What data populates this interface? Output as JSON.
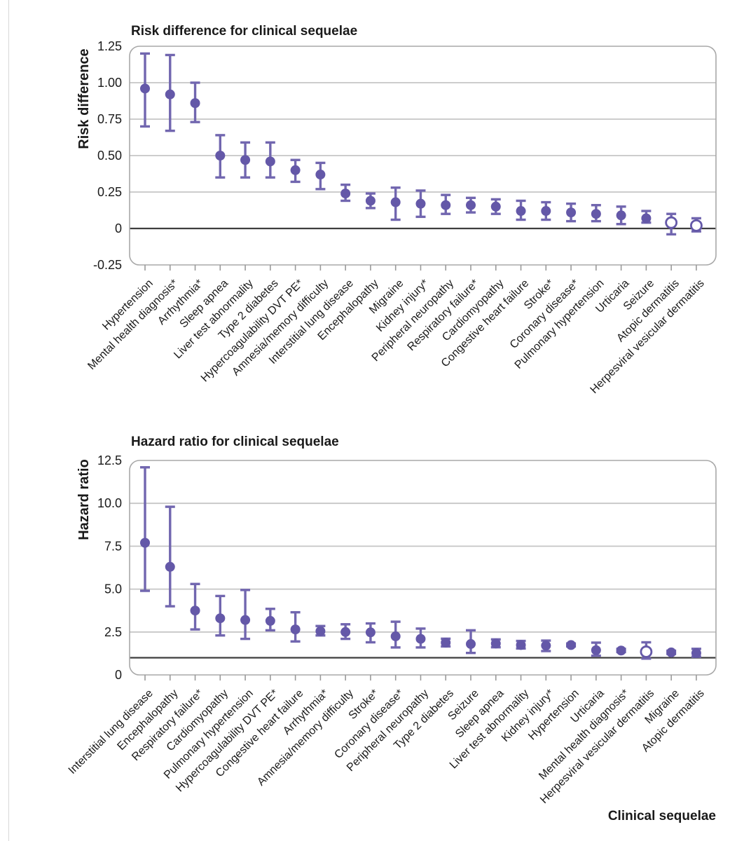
{
  "figure": {
    "x_axis_title": "Clinical sequelae"
  },
  "colors": {
    "marker": "#6458a8",
    "errorbar": "#7166af",
    "open_marker_fill": "#ffffff",
    "grid": "#c6c6c6",
    "reference_line": "#3e3e3e",
    "frame": "#a8a8a8",
    "tick": "#9a9a9a",
    "text": "#1a1a1a"
  },
  "chart_data": [
    {
      "type": "scatter",
      "subtype": "point-estimates-with-95ci-error-bars",
      "title": "Risk difference for clinical sequelae",
      "ylabel": "Risk difference",
      "ylim": [
        -0.25,
        1.25
      ],
      "grid": true,
      "legend_position": "none",
      "reference_line": 0,
      "yticks": [
        {
          "v": 1.25,
          "label": "1.25"
        },
        {
          "v": 1.0,
          "label": "1.00"
        },
        {
          "v": 0.75,
          "label": "0.75"
        },
        {
          "v": 0.5,
          "label": "0.50"
        },
        {
          "v": 0.25,
          "label": "0.25"
        },
        {
          "v": 0,
          "label": "0"
        },
        {
          "v": -0.25,
          "label": "-0.25"
        }
      ],
      "points": [
        {
          "category": "Hypertension",
          "value": 0.96,
          "lo": 0.7,
          "hi": 1.2,
          "open": false
        },
        {
          "category": "Mental health diagnosis*",
          "value": 0.92,
          "lo": 0.67,
          "hi": 1.19,
          "open": false
        },
        {
          "category": "Arrhythmia*",
          "value": 0.86,
          "lo": 0.73,
          "hi": 1.0,
          "open": false
        },
        {
          "category": "Sleep apnea",
          "value": 0.5,
          "lo": 0.35,
          "hi": 0.64,
          "open": false
        },
        {
          "category": "Liver test abnormality",
          "value": 0.47,
          "lo": 0.35,
          "hi": 0.59,
          "open": false
        },
        {
          "category": "Type 2 diabetes",
          "value": 0.46,
          "lo": 0.35,
          "hi": 0.59,
          "open": false
        },
        {
          "category": "Hypercoagulability DVT PE*",
          "value": 0.4,
          "lo": 0.32,
          "hi": 0.47,
          "open": false
        },
        {
          "category": "Amnesia/memory difficulty",
          "value": 0.37,
          "lo": 0.27,
          "hi": 0.45,
          "open": false
        },
        {
          "category": "Interstitial lung disease",
          "value": 0.24,
          "lo": 0.19,
          "hi": 0.3,
          "open": false
        },
        {
          "category": "Encephalopathy",
          "value": 0.19,
          "lo": 0.14,
          "hi": 0.24,
          "open": false
        },
        {
          "category": "Migraine",
          "value": 0.18,
          "lo": 0.06,
          "hi": 0.28,
          "open": false
        },
        {
          "category": "Kidney injury*",
          "value": 0.17,
          "lo": 0.08,
          "hi": 0.26,
          "open": false
        },
        {
          "category": "Peripheral neuropathy",
          "value": 0.16,
          "lo": 0.1,
          "hi": 0.23,
          "open": false
        },
        {
          "category": "Respiratory failure*",
          "value": 0.16,
          "lo": 0.11,
          "hi": 0.21,
          "open": false
        },
        {
          "category": "Cardiomyopathy",
          "value": 0.15,
          "lo": 0.1,
          "hi": 0.2,
          "open": false
        },
        {
          "category": "Congestive heart failure",
          "value": 0.12,
          "lo": 0.06,
          "hi": 0.19,
          "open": false
        },
        {
          "category": "Stroke*",
          "value": 0.12,
          "lo": 0.06,
          "hi": 0.18,
          "open": false
        },
        {
          "category": "Coronary disease*",
          "value": 0.11,
          "lo": 0.05,
          "hi": 0.17,
          "open": false
        },
        {
          "category": "Pulmonary hypertension",
          "value": 0.1,
          "lo": 0.05,
          "hi": 0.16,
          "open": false
        },
        {
          "category": "Urticaria",
          "value": 0.09,
          "lo": 0.03,
          "hi": 0.15,
          "open": false
        },
        {
          "category": "Seizure",
          "value": 0.07,
          "lo": 0.04,
          "hi": 0.12,
          "open": false
        },
        {
          "category": "Atopic dermatitis",
          "value": 0.04,
          "lo": -0.04,
          "hi": 0.1,
          "open": true
        },
        {
          "category": "Herpesviral vesicular dermatitis",
          "value": 0.02,
          "lo": -0.02,
          "hi": 0.07,
          "open": true
        }
      ]
    },
    {
      "type": "scatter",
      "subtype": "point-estimates-with-95ci-error-bars",
      "title": "Hazard ratio for clinical sequelae",
      "ylabel": "Hazard ratio",
      "ylim": [
        0,
        12.5
      ],
      "grid": true,
      "legend_position": "none",
      "reference_line": 1,
      "yticks": [
        {
          "v": 12.5,
          "label": "12.5"
        },
        {
          "v": 10.0,
          "label": "10.0"
        },
        {
          "v": 7.5,
          "label": "7.5"
        },
        {
          "v": 5.0,
          "label": "5.0"
        },
        {
          "v": 2.5,
          "label": "2.5"
        },
        {
          "v": 0,
          "label": "0"
        }
      ],
      "points": [
        {
          "category": "Interstitial lung disease",
          "value": 7.7,
          "lo": 4.9,
          "hi": 12.1,
          "open": false
        },
        {
          "category": "Encephalopathy",
          "value": 6.3,
          "lo": 4.0,
          "hi": 9.8,
          "open": false
        },
        {
          "category": "Respiratory failure*",
          "value": 3.75,
          "lo": 2.65,
          "hi": 5.3,
          "open": false
        },
        {
          "category": "Cardiomyopathy",
          "value": 3.3,
          "lo": 2.3,
          "hi": 4.6,
          "open": false
        },
        {
          "category": "Pulmonary hypertension",
          "value": 3.2,
          "lo": 2.1,
          "hi": 4.95,
          "open": false
        },
        {
          "category": "Hypercoagulability DVT PE*",
          "value": 3.15,
          "lo": 2.6,
          "hi": 3.85,
          "open": false
        },
        {
          "category": "Congestive heart failure",
          "value": 2.65,
          "lo": 1.95,
          "hi": 3.65,
          "open": false
        },
        {
          "category": "Arrhythmia*",
          "value": 2.55,
          "lo": 2.3,
          "hi": 2.85,
          "open": false
        },
        {
          "category": "Amnesia/memory difficulty",
          "value": 2.5,
          "lo": 2.1,
          "hi": 2.95,
          "open": false
        },
        {
          "category": "Stroke*",
          "value": 2.48,
          "lo": 1.9,
          "hi": 3.0,
          "open": false
        },
        {
          "category": "Coronary disease*",
          "value": 2.25,
          "lo": 1.6,
          "hi": 3.1,
          "open": false
        },
        {
          "category": "Peripheral neuropathy",
          "value": 2.1,
          "lo": 1.6,
          "hi": 2.7,
          "open": false
        },
        {
          "category": "Type 2 diabetes",
          "value": 1.88,
          "lo": 1.66,
          "hi": 2.11,
          "open": false
        },
        {
          "category": "Seizure",
          "value": 1.8,
          "lo": 1.28,
          "hi": 2.6,
          "open": false
        },
        {
          "category": "Sleep apnea",
          "value": 1.83,
          "lo": 1.61,
          "hi": 2.07,
          "open": false
        },
        {
          "category": "Liver test abnormality",
          "value": 1.74,
          "lo": 1.54,
          "hi": 1.98,
          "open": false
        },
        {
          "category": "Kidney injury*",
          "value": 1.71,
          "lo": 1.39,
          "hi": 2.0,
          "open": false
        },
        {
          "category": "Hypertension",
          "value": 1.74,
          "lo": 1.66,
          "hi": 1.83,
          "open": false
        },
        {
          "category": "Urticaria",
          "value": 1.44,
          "lo": 1.12,
          "hi": 1.88,
          "open": false
        },
        {
          "category": "Mental health diagnosis*",
          "value": 1.42,
          "lo": 1.33,
          "hi": 1.52,
          "open": false
        },
        {
          "category": "Herpesviral vesicular dermatitis",
          "value": 1.35,
          "lo": 0.95,
          "hi": 1.9,
          "open": true
        },
        {
          "category": "Migraine",
          "value": 1.31,
          "lo": 1.22,
          "hi": 1.41,
          "open": false
        },
        {
          "category": "Atopic dermatitis",
          "value": 1.27,
          "lo": 1.06,
          "hi": 1.52,
          "open": false
        }
      ]
    }
  ]
}
